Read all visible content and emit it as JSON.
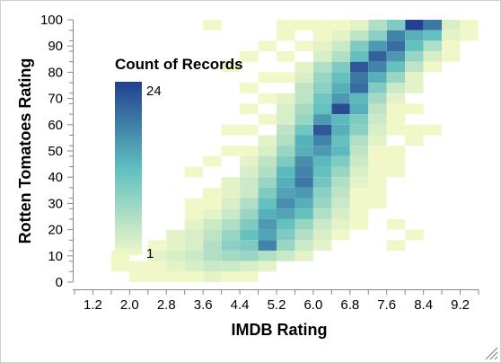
{
  "chart_data": {
    "type": "heatmap",
    "title": "",
    "xlabel": "IMDB Rating",
    "ylabel": "Rotten Tomatoes Rating",
    "x_ticks": [
      "1.2",
      "2.0",
      "2.8",
      "3.6",
      "4.4",
      "5.2",
      "6.0",
      "6.8",
      "7.6",
      "8.4",
      "9.2"
    ],
    "y_ticks": [
      "0",
      "10",
      "20",
      "30",
      "40",
      "50",
      "60",
      "70",
      "80",
      "90",
      "100"
    ],
    "xlim": [
      0.8,
      9.6
    ],
    "ylim": [
      0,
      100
    ],
    "x_bin_width": 0.4,
    "y_bin_width": 4,
    "legend": {
      "title": "Count of Records",
      "max_label": "24",
      "min_label": "1",
      "min": 1,
      "max": 24,
      "color_low": "#f0f8c8",
      "color_mid": "#5fbfc0",
      "color_high": "#22418f",
      "position": "top-left"
    },
    "grid": false,
    "cells": [
      [
        8.0,
        96,
        24
      ],
      [
        8.4,
        96,
        19
      ],
      [
        7.6,
        96,
        10
      ],
      [
        7.2,
        96,
        6
      ],
      [
        8.8,
        96,
        3
      ],
      [
        9.2,
        96,
        1
      ],
      [
        6.8,
        96,
        2
      ],
      [
        8.0,
        92,
        14
      ],
      [
        8.4,
        92,
        12
      ],
      [
        7.6,
        92,
        18
      ],
      [
        7.2,
        92,
        9
      ],
      [
        6.8,
        92,
        5
      ],
      [
        6.4,
        92,
        2
      ],
      [
        8.8,
        92,
        2
      ],
      [
        7.6,
        88,
        20
      ],
      [
        8.0,
        88,
        12
      ],
      [
        7.2,
        88,
        16
      ],
      [
        6.8,
        88,
        10
      ],
      [
        6.4,
        88,
        4
      ],
      [
        8.4,
        88,
        6
      ],
      [
        6.0,
        88,
        2
      ],
      [
        7.2,
        84,
        21
      ],
      [
        7.6,
        84,
        16
      ],
      [
        6.8,
        84,
        12
      ],
      [
        8.0,
        84,
        8
      ],
      [
        6.4,
        84,
        6
      ],
      [
        6.0,
        84,
        3
      ],
      [
        8.4,
        84,
        3
      ],
      [
        6.8,
        80,
        22
      ],
      [
        7.2,
        80,
        18
      ],
      [
        7.6,
        80,
        12
      ],
      [
        6.4,
        80,
        10
      ],
      [
        6.0,
        80,
        6
      ],
      [
        8.0,
        80,
        5
      ],
      [
        5.6,
        80,
        2
      ],
      [
        6.8,
        76,
        19
      ],
      [
        7.2,
        76,
        14
      ],
      [
        6.4,
        76,
        12
      ],
      [
        7.6,
        76,
        8
      ],
      [
        6.0,
        76,
        8
      ],
      [
        5.6,
        76,
        3
      ],
      [
        8.0,
        76,
        2
      ],
      [
        6.8,
        72,
        20
      ],
      [
        6.4,
        72,
        14
      ],
      [
        7.2,
        72,
        10
      ],
      [
        6.0,
        72,
        9
      ],
      [
        5.6,
        72,
        5
      ],
      [
        7.6,
        72,
        4
      ],
      [
        6.4,
        68,
        16
      ],
      [
        6.8,
        68,
        13
      ],
      [
        6.0,
        68,
        11
      ],
      [
        7.2,
        68,
        7
      ],
      [
        5.6,
        68,
        5
      ],
      [
        5.2,
        68,
        2
      ],
      [
        7.6,
        68,
        2
      ],
      [
        6.4,
        64,
        23
      ],
      [
        6.0,
        64,
        12
      ],
      [
        6.8,
        64,
        14
      ],
      [
        5.6,
        64,
        7
      ],
      [
        7.2,
        64,
        5
      ],
      [
        5.2,
        64,
        3
      ],
      [
        6.0,
        60,
        16
      ],
      [
        6.4,
        60,
        13
      ],
      [
        6.8,
        60,
        10
      ],
      [
        5.6,
        60,
        8
      ],
      [
        7.2,
        60,
        4
      ],
      [
        5.2,
        60,
        3
      ],
      [
        6.0,
        56,
        22
      ],
      [
        6.4,
        56,
        14
      ],
      [
        5.6,
        56,
        11
      ],
      [
        6.8,
        56,
        9
      ],
      [
        5.2,
        56,
        5
      ],
      [
        7.2,
        56,
        3
      ],
      [
        6.0,
        52,
        18
      ],
      [
        5.6,
        52,
        14
      ],
      [
        6.4,
        52,
        12
      ],
      [
        5.2,
        52,
        6
      ],
      [
        6.8,
        52,
        6
      ],
      [
        4.8,
        52,
        2
      ],
      [
        7.2,
        52,
        2
      ],
      [
        6.0,
        48,
        16
      ],
      [
        5.6,
        48,
        14
      ],
      [
        6.4,
        48,
        13
      ],
      [
        5.2,
        48,
        8
      ],
      [
        6.8,
        48,
        5
      ],
      [
        4.8,
        48,
        3
      ],
      [
        5.6,
        44,
        17
      ],
      [
        6.0,
        44,
        13
      ],
      [
        5.2,
        44,
        10
      ],
      [
        6.4,
        44,
        10
      ],
      [
        4.8,
        44,
        5
      ],
      [
        6.8,
        44,
        4
      ],
      [
        4.4,
        44,
        2
      ],
      [
        5.6,
        40,
        18
      ],
      [
        5.2,
        40,
        13
      ],
      [
        6.0,
        40,
        12
      ],
      [
        6.4,
        40,
        8
      ],
      [
        4.8,
        40,
        6
      ],
      [
        4.4,
        40,
        3
      ],
      [
        6.8,
        40,
        3
      ],
      [
        5.6,
        36,
        19
      ],
      [
        5.2,
        36,
        14
      ],
      [
        6.0,
        36,
        11
      ],
      [
        4.8,
        36,
        8
      ],
      [
        6.4,
        36,
        6
      ],
      [
        4.4,
        36,
        4
      ],
      [
        4.0,
        36,
        2
      ],
      [
        5.6,
        32,
        16
      ],
      [
        5.2,
        32,
        15
      ],
      [
        4.8,
        32,
        10
      ],
      [
        6.0,
        32,
        9
      ],
      [
        6.4,
        32,
        5
      ],
      [
        4.4,
        32,
        4
      ],
      [
        4.0,
        32,
        2
      ],
      [
        5.2,
        28,
        17
      ],
      [
        5.6,
        28,
        14
      ],
      [
        4.8,
        28,
        12
      ],
      [
        6.0,
        28,
        8
      ],
      [
        4.4,
        28,
        6
      ],
      [
        6.4,
        28,
        4
      ],
      [
        4.0,
        28,
        3
      ],
      [
        5.2,
        24,
        15
      ],
      [
        4.8,
        24,
        14
      ],
      [
        5.6,
        24,
        12
      ],
      [
        4.4,
        24,
        8
      ],
      [
        6.0,
        24,
        6
      ],
      [
        4.0,
        24,
        4
      ],
      [
        3.6,
        24,
        2
      ],
      [
        6.4,
        24,
        3
      ],
      [
        4.8,
        20,
        16
      ],
      [
        5.2,
        20,
        12
      ],
      [
        4.4,
        20,
        10
      ],
      [
        5.6,
        20,
        8
      ],
      [
        4.0,
        20,
        6
      ],
      [
        3.6,
        20,
        4
      ],
      [
        6.0,
        20,
        4
      ],
      [
        3.2,
        20,
        2
      ],
      [
        4.8,
        16,
        15
      ],
      [
        4.4,
        16,
        12
      ],
      [
        5.2,
        16,
        10
      ],
      [
        4.0,
        16,
        8
      ],
      [
        3.6,
        16,
        5
      ],
      [
        5.6,
        16,
        6
      ],
      [
        3.2,
        16,
        3
      ],
      [
        6.0,
        16,
        3
      ],
      [
        2.8,
        16,
        2
      ],
      [
        4.8,
        12,
        18
      ],
      [
        4.4,
        12,
        10
      ],
      [
        4.0,
        12,
        9
      ],
      [
        5.2,
        12,
        8
      ],
      [
        3.6,
        12,
        6
      ],
      [
        5.6,
        12,
        4
      ],
      [
        3.2,
        12,
        3
      ],
      [
        2.8,
        12,
        2
      ],
      [
        6.0,
        12,
        2
      ],
      [
        4.4,
        8,
        8
      ],
      [
        4.0,
        8,
        7
      ],
      [
        4.8,
        8,
        6
      ],
      [
        3.6,
        8,
        6
      ],
      [
        3.2,
        8,
        4
      ],
      [
        5.2,
        8,
        4
      ],
      [
        2.8,
        8,
        3
      ],
      [
        2.4,
        8,
        2
      ],
      [
        5.6,
        8,
        2
      ],
      [
        3.6,
        4,
        4
      ],
      [
        4.0,
        4,
        4
      ],
      [
        3.2,
        4,
        3
      ],
      [
        4.4,
        4,
        3
      ],
      [
        2.8,
        4,
        2
      ],
      [
        4.8,
        4,
        2
      ],
      [
        2.4,
        4,
        1
      ],
      [
        1.6,
        4,
        1
      ],
      [
        1.6,
        8,
        1
      ],
      [
        2.0,
        0,
        1
      ],
      [
        2.8,
        0,
        1
      ],
      [
        3.6,
        0,
        2
      ],
      [
        4.4,
        0,
        1
      ],
      [
        3.6,
        96,
        1
      ],
      [
        5.2,
        96,
        1
      ],
      [
        6.0,
        92,
        1
      ],
      [
        4.8,
        88,
        1
      ],
      [
        5.2,
        92,
        1
      ],
      [
        5.6,
        88,
        1
      ],
      [
        4.4,
        84,
        1
      ],
      [
        5.2,
        84,
        1
      ],
      [
        5.6,
        96,
        1
      ],
      [
        6.4,
        96,
        1
      ],
      [
        6.0,
        96,
        1
      ],
      [
        4.0,
        80,
        1
      ],
      [
        4.8,
        76,
        1
      ],
      [
        5.2,
        76,
        1
      ],
      [
        4.4,
        72,
        1
      ],
      [
        4.8,
        68,
        1
      ],
      [
        4.4,
        64,
        1
      ],
      [
        4.0,
        56,
        1
      ],
      [
        4.8,
        60,
        1
      ],
      [
        4.4,
        56,
        1
      ],
      [
        4.0,
        48,
        1
      ],
      [
        4.4,
        48,
        1
      ],
      [
        3.6,
        44,
        1
      ],
      [
        3.2,
        40,
        1
      ],
      [
        8.4,
        80,
        1
      ],
      [
        8.0,
        72,
        2
      ],
      [
        7.6,
        64,
        1
      ],
      [
        8.0,
        64,
        1
      ],
      [
        7.6,
        60,
        1
      ],
      [
        8.0,
        56,
        1
      ],
      [
        7.6,
        56,
        1
      ],
      [
        7.2,
        48,
        1
      ],
      [
        7.6,
        48,
        1
      ],
      [
        7.2,
        44,
        1
      ],
      [
        7.6,
        44,
        1
      ],
      [
        7.2,
        40,
        1
      ],
      [
        6.8,
        36,
        2
      ],
      [
        7.2,
        36,
        1
      ],
      [
        6.8,
        32,
        1
      ],
      [
        7.2,
        32,
        1
      ],
      [
        6.8,
        28,
        1
      ],
      [
        6.8,
        24,
        1
      ],
      [
        7.6,
        20,
        1
      ],
      [
        6.4,
        20,
        2
      ],
      [
        6.4,
        16,
        1
      ],
      [
        7.6,
        12,
        1
      ],
      [
        8.0,
        16,
        1
      ],
      [
        3.2,
        28,
        1
      ],
      [
        3.6,
        32,
        1
      ],
      [
        3.6,
        28,
        1
      ],
      [
        2.4,
        12,
        1
      ],
      [
        3.2,
        24,
        1
      ],
      [
        8.8,
        88,
        1
      ],
      [
        8.8,
        84,
        1
      ],
      [
        9.2,
        92,
        1
      ],
      [
        2.0,
        4,
        1
      ],
      [
        2.4,
        0,
        1
      ],
      [
        4.0,
        0,
        1
      ],
      [
        3.2,
        0,
        1
      ],
      [
        6.8,
        20,
        1
      ],
      [
        7.2,
        28,
        1
      ],
      [
        7.6,
        40,
        1
      ],
      [
        8.0,
        52,
        1
      ],
      [
        8.4,
        56,
        1
      ]
    ]
  }
}
